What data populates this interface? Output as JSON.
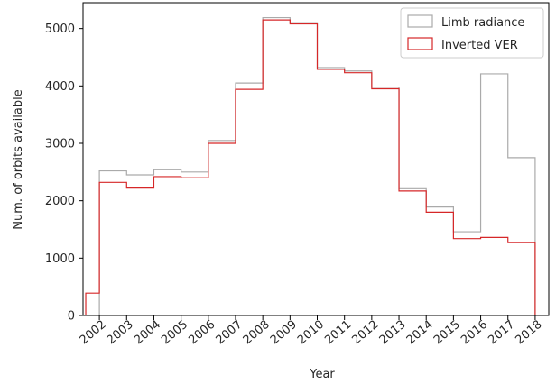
{
  "chart_data": {
    "type": "step",
    "title": "",
    "xlabel": "Year",
    "ylabel": "Num. of orbits available",
    "x_ticks": [
      "2002",
      "2003",
      "2004",
      "2005",
      "2006",
      "2007",
      "2008",
      "2009",
      "2010",
      "2011",
      "2012",
      "2013",
      "2014",
      "2015",
      "2016",
      "2017",
      "2018"
    ],
    "y_ticks": [
      0,
      1000,
      2000,
      3000,
      4000,
      5000
    ],
    "xlim": [
      2001.4,
      2018.5
    ],
    "ylim": [
      0,
      5450
    ],
    "bin_edges": [
      2001.5,
      2002,
      2002.5,
      2003,
      2003.5,
      2004,
      2004.5,
      2005,
      2005.5,
      2006,
      2006.5,
      2007,
      2007.5,
      2008,
      2008.5,
      2009,
      2009.5,
      2010,
      2010.5,
      2011,
      2011.5,
      2012,
      2012.5,
      2013,
      2013.5,
      2014,
      2014.5,
      2015,
      2015.5,
      2016,
      2016.5,
      2017,
      2017.5,
      2018
    ],
    "series": [
      {
        "name": "Limb radiance",
        "color": "#aaaaaa",
        "edges": [
          2002,
          2003,
          2004,
          2005,
          2006,
          2007,
          2008,
          2009,
          2010,
          2011,
          2012,
          2013,
          2014,
          2015,
          2016,
          2017,
          2018
        ],
        "values": [
          2520,
          2450,
          2540,
          2500,
          3050,
          4050,
          5190,
          5100,
          4320,
          4260,
          3980,
          2210,
          1890,
          1460,
          4210,
          2750
        ]
      },
      {
        "name": "Inverted VER",
        "color": "#d62728",
        "edges": [
          2001.5,
          2002,
          2003,
          2004,
          2005,
          2006,
          2007,
          2008,
          2009,
          2010,
          2011,
          2012,
          2013,
          2014,
          2015,
          2016,
          2017,
          2018
        ],
        "values": [
          390,
          2320,
          2220,
          2420,
          2400,
          3000,
          3940,
          5150,
          5080,
          4290,
          4230,
          3950,
          2170,
          1800,
          1340,
          1360,
          1270
        ]
      }
    ],
    "legend_position": "top-right",
    "grid": false
  }
}
